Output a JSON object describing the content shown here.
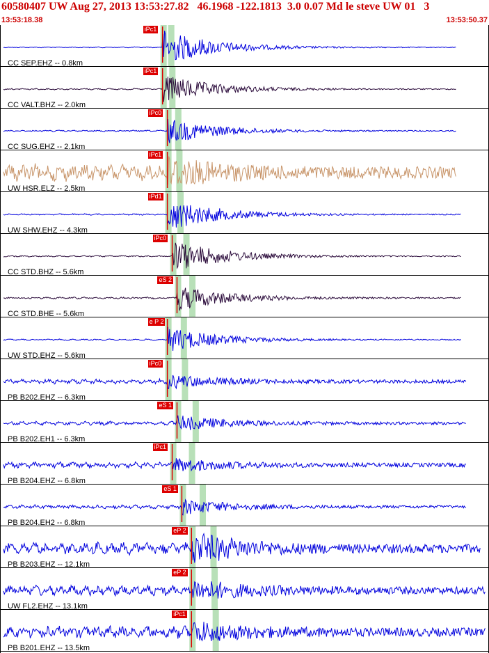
{
  "header": {
    "title": "60580407 UW Aug 27, 2013 13:53:27.82   46.1968 -122.1813  3.0 0.07 Md le steve UW 01   3",
    "start_time": "13:53:18.38",
    "end_time": "13:53:50.37"
  },
  "colors": {
    "trace_blue": "#0000dd",
    "trace_purple": "#2a0a3a",
    "trace_tan": "#c8956a",
    "pick_red": "#dd0000",
    "window_green": "#b8e0b8"
  },
  "channels": [
    {
      "label": "CC SEP.EHZ -- 0.8km",
      "pick": "iPc1",
      "color": "blue",
      "arrival": 0.33,
      "amp": 1.0,
      "noise": 0.02,
      "cutoff": 0.94
    },
    {
      "label": "CC VALT.BHZ -- 2.0km",
      "pick": "iPc1",
      "color": "purple",
      "arrival": 0.33,
      "amp": 0.8,
      "noise": 0.03,
      "cutoff": 0.94
    },
    {
      "label": "CC SUG.EHZ -- 2.1km",
      "pick": "iPc0",
      "color": "blue",
      "arrival": 0.34,
      "amp": 0.7,
      "noise": 0.03,
      "cutoff": 0.94
    },
    {
      "label": "UW HSR.ELZ -- 2.5km",
      "pick": "iPc1",
      "color": "tan",
      "arrival": 0.34,
      "amp": 0.7,
      "noise": 0.35,
      "cutoff": 0.94
    },
    {
      "label": "UW SHW.EHZ -- 4.3km",
      "pick": "iPd1",
      "color": "blue",
      "arrival": 0.34,
      "amp": 0.9,
      "noise": 0.03,
      "cutoff": 0.95
    },
    {
      "label": "CC STD.BHZ -- 5.6km",
      "pick": "iPc0",
      "color": "purple",
      "arrival": 0.35,
      "amp": 0.9,
      "noise": 0.03,
      "cutoff": 0.95
    },
    {
      "label": "CC STD.BHE -- 5.6km",
      "pick": "eS 2",
      "color": "purple",
      "arrival": 0.36,
      "amp": 0.7,
      "noise": 0.04,
      "cutoff": 0.95
    },
    {
      "label": "UW STD.EHZ -- 5.6km",
      "pick": "e P 2",
      "color": "blue",
      "arrival": 0.34,
      "amp": 0.7,
      "noise": 0.03,
      "cutoff": 0.95
    },
    {
      "label": "PB B202.EHZ -- 6.3km",
      "pick": "iPc0",
      "color": "blue",
      "arrival": 0.34,
      "amp": 0.35,
      "noise": 0.1,
      "cutoff": 0.96
    },
    {
      "label": "PB B202.EH1 -- 6.3km",
      "pick": "eS 1",
      "color": "blue",
      "arrival": 0.36,
      "amp": 0.4,
      "noise": 0.08,
      "cutoff": 0.96
    },
    {
      "label": "PB B204.EHZ -- 6.8km",
      "pick": "iPc1",
      "color": "blue",
      "arrival": 0.35,
      "amp": 0.35,
      "noise": 0.12,
      "cutoff": 0.96
    },
    {
      "label": "PB B204.EH2 -- 6.8km",
      "pick": "eS 1",
      "color": "blue",
      "arrival": 0.37,
      "amp": 0.4,
      "noise": 0.08,
      "cutoff": 0.96
    },
    {
      "label": "PB B203.EHZ -- 12.1km",
      "pick": "eP 2",
      "color": "blue",
      "arrival": 0.39,
      "amp": 0.8,
      "noise": 0.25,
      "cutoff": 0.99
    },
    {
      "label": "UW FL2.EHZ -- 13.1km",
      "pick": "eP 2",
      "color": "blue",
      "arrival": 0.39,
      "amp": 0.5,
      "noise": 0.22,
      "cutoff": 1.0
    },
    {
      "label": "PB B201.EHZ -- 13.5km",
      "pick": "iPc1",
      "color": "blue",
      "arrival": 0.39,
      "amp": 0.5,
      "noise": 0.25,
      "cutoff": 1.0
    }
  ]
}
